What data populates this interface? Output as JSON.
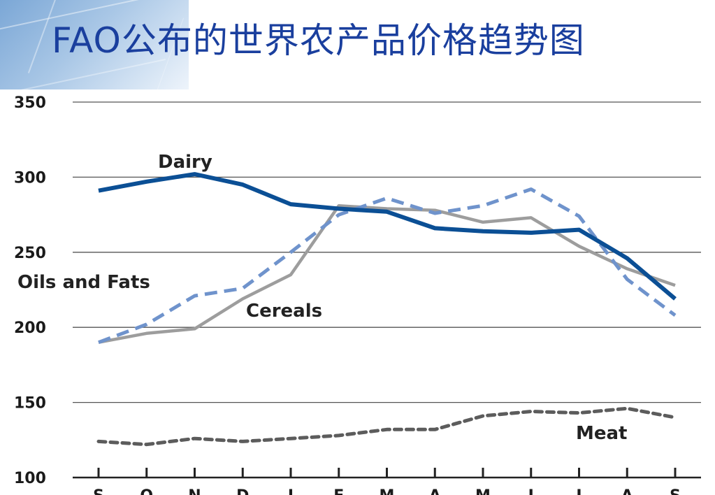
{
  "slide_title": "FAO公布的世界农产品价格趋势图",
  "colors": {
    "title": "#1a3f9e",
    "dairy": "#0b4f95",
    "oils_and_fats": "#6f93cc",
    "cereals": "#9d9d9d",
    "meat": "#5c5c5c",
    "gridline": "#555555"
  },
  "chart_data": {
    "type": "line",
    "title": "",
    "xlabel": "",
    "ylabel": "",
    "ylim": [
      100,
      350
    ],
    "yticks": [
      100,
      150,
      200,
      250,
      300,
      350
    ],
    "grid": true,
    "x": [
      "S",
      "O",
      "N",
      "D",
      "J",
      "F",
      "M",
      "A",
      "M",
      "J",
      "J",
      "A",
      "S"
    ],
    "series": [
      {
        "name": "Dairy",
        "style": "solid-thick",
        "color": "#0b4f95",
        "values": [
          291,
          297,
          302,
          295,
          282,
          279,
          277,
          266,
          264,
          263,
          265,
          246,
          219
        ]
      },
      {
        "name": "Oils and Fats",
        "style": "dashed",
        "color": "#6f93cc",
        "values": [
          190,
          202,
          221,
          226,
          250,
          275,
          286,
          276,
          281,
          292,
          274,
          232,
          208
        ]
      },
      {
        "name": "Cereals",
        "style": "solid",
        "color": "#9d9d9d",
        "values": [
          190,
          196,
          199,
          219,
          235,
          281,
          279,
          278,
          270,
          273,
          254,
          239,
          228
        ]
      },
      {
        "name": "Meat",
        "style": "dotted",
        "color": "#5c5c5c",
        "values": [
          124,
          122,
          126,
          124,
          126,
          128,
          132,
          132,
          141,
          144,
          143,
          146,
          140
        ]
      }
    ]
  }
}
